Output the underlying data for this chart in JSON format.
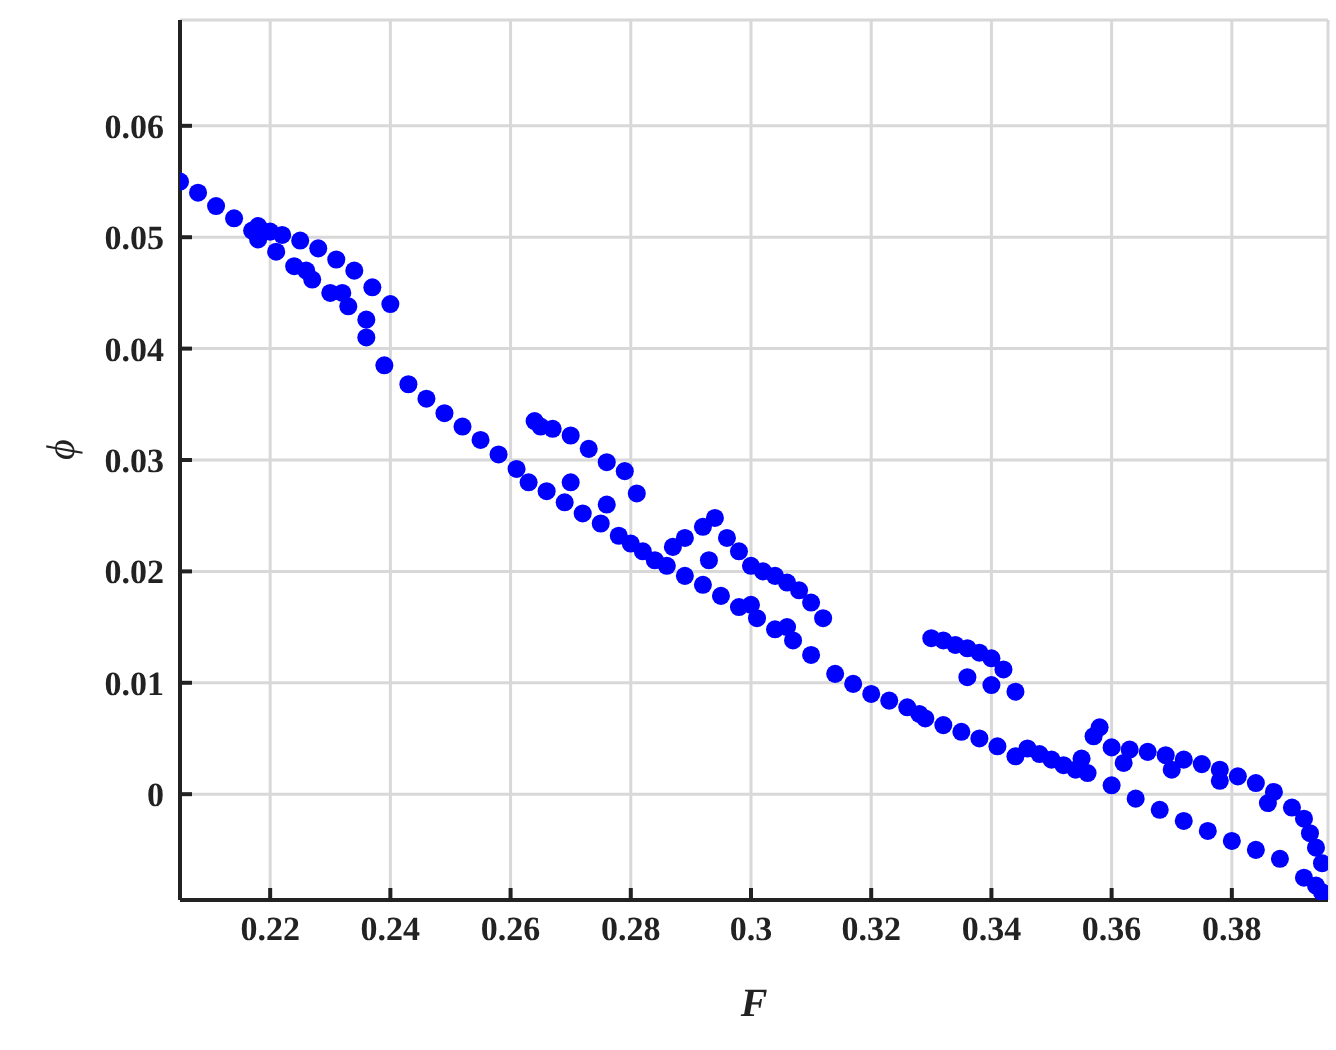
{
  "chart_data": {
    "type": "scatter",
    "xlabel": "F",
    "ylabel": "ϕ",
    "xlim": [
      0.205,
      0.396
    ],
    "ylim": [
      -0.0095,
      0.0695
    ],
    "xticks": [
      0.22,
      0.24,
      0.26,
      0.28,
      0.3,
      0.32,
      0.34,
      0.36,
      0.38
    ],
    "yticks": [
      0,
      0.01,
      0.02,
      0.03,
      0.04,
      0.05,
      0.06
    ],
    "grid": true,
    "marker": "circle",
    "series": [
      {
        "color": "#0000ff",
        "x": [
          0.205,
          0.208,
          0.211,
          0.214,
          0.217,
          0.218,
          0.22,
          0.222,
          0.225,
          0.228,
          0.231,
          0.234,
          0.237,
          0.24,
          0.218,
          0.221,
          0.224,
          0.227,
          0.23,
          0.233,
          0.236,
          0.239,
          0.226,
          0.232,
          0.236,
          0.243,
          0.246,
          0.249,
          0.252,
          0.255,
          0.258,
          0.261,
          0.263,
          0.264,
          0.265,
          0.267,
          0.27,
          0.273,
          0.276,
          0.279,
          0.266,
          0.269,
          0.272,
          0.275,
          0.278,
          0.28,
          0.27,
          0.276,
          0.281,
          0.282,
          0.284,
          0.286,
          0.287,
          0.289,
          0.292,
          0.294,
          0.296,
          0.298,
          0.3,
          0.302,
          0.304,
          0.306,
          0.308,
          0.31,
          0.312,
          0.289,
          0.292,
          0.295,
          0.298,
          0.301,
          0.304,
          0.307,
          0.31,
          0.293,
          0.3,
          0.306,
          0.314,
          0.317,
          0.32,
          0.323,
          0.326,
          0.328,
          0.33,
          0.332,
          0.334,
          0.336,
          0.338,
          0.34,
          0.342,
          0.344,
          0.329,
          0.332,
          0.335,
          0.338,
          0.341,
          0.344,
          0.336,
          0.34,
          0.346,
          0.348,
          0.35,
          0.352,
          0.354,
          0.355,
          0.357,
          0.358,
          0.36,
          0.363,
          0.366,
          0.369,
          0.372,
          0.375,
          0.378,
          0.381,
          0.384,
          0.387,
          0.39,
          0.356,
          0.36,
          0.364,
          0.368,
          0.372,
          0.376,
          0.38,
          0.384,
          0.388,
          0.362,
          0.37,
          0.378,
          0.386,
          0.392,
          0.393,
          0.394,
          0.395,
          0.392,
          0.394,
          0.395
        ],
        "values": [
          0.055,
          0.054,
          0.0528,
          0.0517,
          0.0506,
          0.051,
          0.0505,
          0.0502,
          0.0497,
          0.049,
          0.048,
          0.047,
          0.0455,
          0.044,
          0.0498,
          0.0487,
          0.0474,
          0.0462,
          0.045,
          0.0438,
          0.0426,
          0.0385,
          0.047,
          0.045,
          0.041,
          0.0368,
          0.0355,
          0.0342,
          0.033,
          0.0318,
          0.0305,
          0.0292,
          0.028,
          0.0335,
          0.033,
          0.0328,
          0.0322,
          0.031,
          0.0298,
          0.029,
          0.0272,
          0.0262,
          0.0252,
          0.0243,
          0.0232,
          0.0225,
          0.028,
          0.026,
          0.027,
          0.0218,
          0.021,
          0.0205,
          0.0222,
          0.023,
          0.024,
          0.0248,
          0.023,
          0.0218,
          0.0205,
          0.02,
          0.0196,
          0.019,
          0.0183,
          0.0172,
          0.0158,
          0.0196,
          0.0188,
          0.0178,
          0.0168,
          0.0158,
          0.0148,
          0.0138,
          0.0125,
          0.021,
          0.017,
          0.015,
          0.0108,
          0.0099,
          0.009,
          0.0084,
          0.0078,
          0.0072,
          0.014,
          0.0138,
          0.0134,
          0.0131,
          0.0127,
          0.0122,
          0.0112,
          0.0092,
          0.0068,
          0.0062,
          0.0056,
          0.005,
          0.0043,
          0.0034,
          0.0105,
          0.0098,
          0.0041,
          0.0036,
          0.0031,
          0.0026,
          0.0022,
          0.0032,
          0.0052,
          0.006,
          0.0042,
          0.004,
          0.0038,
          0.0035,
          0.0031,
          0.0027,
          0.0022,
          0.0016,
          0.001,
          0.0002,
          -0.0012,
          0.0019,
          0.0008,
          -0.0004,
          -0.0014,
          -0.0024,
          -0.0033,
          -0.0042,
          -0.005,
          -0.0058,
          0.0028,
          0.0022,
          0.0012,
          -0.0008,
          -0.0022,
          -0.0035,
          -0.0048,
          -0.0062,
          -0.0075,
          -0.0082,
          -0.0088
        ]
      }
    ]
  }
}
